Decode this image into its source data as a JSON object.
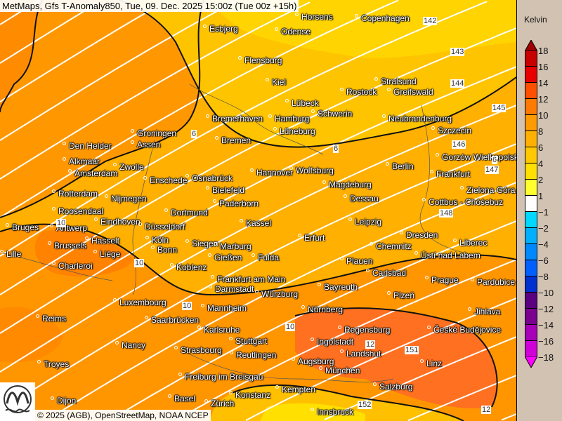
{
  "header": {
    "title": "MetMaps, Gfs T-Anomaly850, Tue, 09. Dec. 2025 15:00z (Tue 00z +15h)"
  },
  "footer": {
    "copyright": "© 2025 (AGB), OpenStreetMap, NOAA NCEP",
    "logo_text": "METMAPS"
  },
  "legend": {
    "unit": "Kelvin",
    "labels": [
      "18",
      "16",
      "14",
      "12",
      "10",
      "8",
      "6",
      "4",
      "2",
      "1",
      "−1",
      "−2",
      "−4",
      "−6",
      "−8",
      "−10",
      "−12",
      "−14",
      "−16",
      "−18"
    ],
    "colors": [
      "#c80000",
      "#e80000",
      "#ff5000",
      "#ff7a00",
      "#ff9a00",
      "#ffb000",
      "#ffc800",
      "#ffe000",
      "#ffff30",
      "#ffffff",
      "#00d8ff",
      "#00b0ff",
      "#0088ff",
      "#0060ff",
      "#0030d0",
      "#5a0080",
      "#7a0090",
      "#a800b8",
      "#d000d8"
    ],
    "top_arrow_color": "#a00000",
    "bottom_arrow_color": "#ff00ff"
  },
  "cities": [
    "Horsens",
    "Esbjerg",
    "Odense",
    "Copenhagen",
    "Flensburg",
    "Kiel",
    "Stralsund",
    "Rostock",
    "Greifswald",
    "Lübeck",
    "Schwerin",
    "Neubrandenburg",
    "Szczecin",
    "Bremerhaven",
    "Hamburg",
    "Bremen",
    "Lüneburg",
    "Groningen",
    "Assen",
    "Den Helder",
    "Alkmaar",
    "Zwolle",
    "Amsterdam",
    "Enschede",
    "Osnabrück",
    "Hannover",
    "Wolfsburg",
    "Berlin",
    "Gorzów Wielkopolski",
    "Frankfurt",
    "Bielefeld",
    "Magdeburg",
    "Rotterdam",
    "Nijmegen",
    "Dessau",
    "Zielona Góra",
    "Paderborn",
    "Cottbus - Chóśebuz",
    "Roosendaal",
    "Eindhoven",
    "Dortmund",
    "Bruges",
    "Antwerp",
    "Düsseldorf",
    "Kassel",
    "Leipzig",
    "Dresden",
    "Erfurt",
    "Hasselt",
    "Brussels",
    "Köln",
    "Bonn",
    "Siegen",
    "Marburg",
    "Chemnitz",
    "Ústí nad Labem",
    "Liberec",
    "Lille",
    "Liège",
    "Gießen",
    "Fulda",
    "Plauen",
    "Charleroi",
    "Koblenz",
    "Carlsbad",
    "Frankfurt am Main",
    "Prague",
    "Pardubice",
    "Darmstadt",
    "Bayreuth",
    "Würzburg",
    "Plzeň",
    "Luxembourg",
    "Mannheim",
    "Nürnberg",
    "Jihlava",
    "Reims",
    "Saarbrücken",
    "Regensburg",
    "České Budějovice",
    "Karlsruhe",
    "Stuttgart",
    "Ingolstadt",
    "Nancy",
    "Strasbourg",
    "Landshut",
    "Reutlingen",
    "Troyes",
    "Linz",
    "Augsburg",
    "München",
    "Freiburg im Breisgau",
    "Salzburg",
    "Konstanz",
    "Kempten",
    "Basel",
    "Zürich",
    "Innsbruck",
    "Dijon"
  ],
  "isoline_labels": [
    "142",
    "143",
    "144",
    "145",
    "146",
    "147",
    "148",
    "151",
    "152",
    "6",
    "6",
    "6",
    "10",
    "10",
    "10",
    "10",
    "12",
    "12"
  ]
}
